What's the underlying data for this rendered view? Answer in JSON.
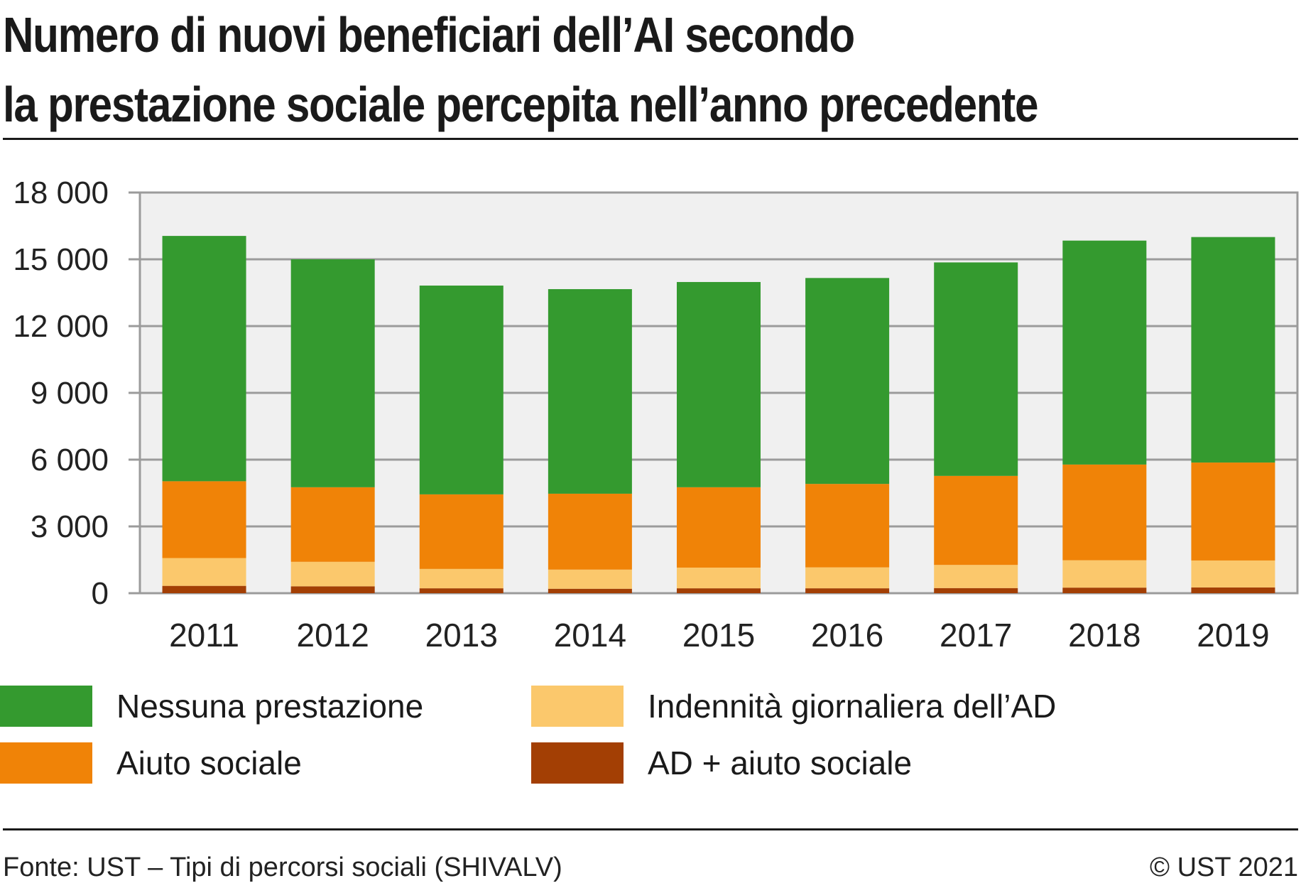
{
  "title": {
    "line1": "Numero di nuovi beneficiari dell’AI secondo",
    "line2": "la prestazione sociale percepita nell’anno precedente"
  },
  "chart_data": {
    "type": "bar",
    "stacked": true,
    "categories": [
      "2011",
      "2012",
      "2013",
      "2014",
      "2015",
      "2016",
      "2017",
      "2018",
      "2019"
    ],
    "series": [
      {
        "name": "AD + aiuto sociale",
        "color": "#a33f04",
        "values": [
          330,
          310,
          220,
          200,
          220,
          220,
          230,
          250,
          260
        ]
      },
      {
        "name": "Indennità giornaliera dell’AD",
        "color": "#fbc86c",
        "values": [
          1250,
          1100,
          870,
          860,
          930,
          940,
          1040,
          1230,
          1210
        ]
      },
      {
        "name": "Aiuto sociale",
        "color": "#f08307",
        "values": [
          3450,
          3350,
          3350,
          3410,
          3610,
          3750,
          4000,
          4300,
          4400
        ]
      },
      {
        "name": "Nessuna prestazione",
        "color": "#349a2f",
        "values": [
          11020,
          10240,
          9380,
          9190,
          9220,
          9250,
          9590,
          10060,
          10130
        ]
      }
    ],
    "y_ticks": [
      "0",
      "3 000",
      "6 000",
      "9 000",
      "12 000",
      "15 000",
      "18 000"
    ],
    "ylim": [
      0,
      18000
    ],
    "grid": true,
    "plot_background": "#f0f0f0",
    "legend_position": "bottom",
    "xlabel": "",
    "ylabel": ""
  },
  "legend": [
    {
      "label": "Nessuna prestazione",
      "color": "#349a2f"
    },
    {
      "label": "Indennità giornaliera dell’AD",
      "color": "#fbc86c"
    },
    {
      "label": "Aiuto sociale",
      "color": "#f08307"
    },
    {
      "label": "AD + aiuto sociale",
      "color": "#a33f04"
    }
  ],
  "footer": {
    "source": "Fonte: UST – Tipi di percorsi sociali (SHIVALV)",
    "copyright": "© UST 2021"
  }
}
